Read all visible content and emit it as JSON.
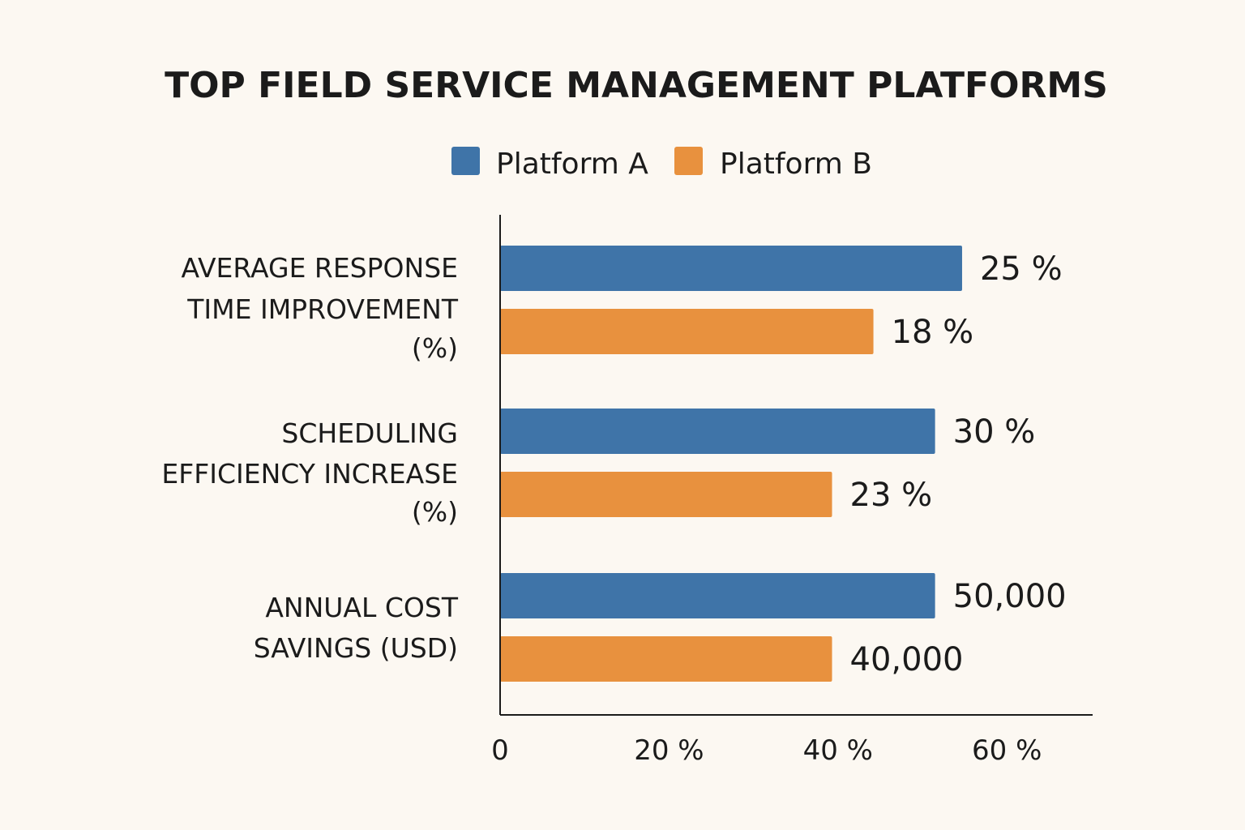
{
  "chart_data": {
    "type": "bar",
    "orientation": "horizontal",
    "title": "TOP FIELD SERVICE MANAGEMENT PLATFORMS",
    "legend_position": "top-center",
    "categories": [
      [
        "AVERAGE RESPONSE",
        "TIME IMPROVEMENT",
        "(%)"
      ],
      [
        "SCHEDULING",
        "EFFICIENCY INCREASE",
        "(%)"
      ],
      [
        "ANNUAL COST",
        "SAVINGS (USD)"
      ]
    ],
    "series": [
      {
        "name": "Platform A",
        "color": "#3f74a8",
        "values": [
          25,
          30,
          50000
        ],
        "value_labels": [
          "25 %",
          "30 %",
          "50,000"
        ],
        "plotted_percent": [
          54.7,
          51.5,
          51.5
        ]
      },
      {
        "name": "Platform B",
        "color": "#e8913e",
        "values": [
          18,
          23,
          40000
        ],
        "value_labels": [
          "18 %",
          "23 %",
          "40,000"
        ],
        "plotted_percent": [
          44.2,
          39.3,
          39.3
        ]
      }
    ],
    "x_ticks": [
      {
        "value": 0,
        "label": "0"
      },
      {
        "value": 20,
        "label": "20 %"
      },
      {
        "value": 40,
        "label": "40 %"
      },
      {
        "value": 60,
        "label": "60 %"
      }
    ],
    "xlim": [
      0,
      70
    ],
    "grid": false,
    "xlabel": "",
    "ylabel": ""
  }
}
